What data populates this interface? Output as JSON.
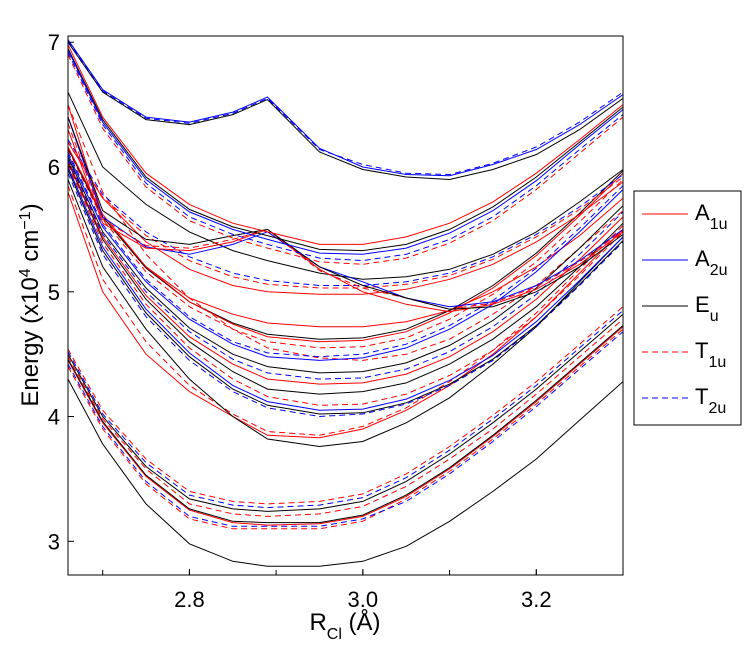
{
  "chart_data": {
    "type": "line",
    "title": "",
    "xlabel": {
      "main": "R",
      "sub": "Cl",
      "unit": " (Å)"
    },
    "ylabel": {
      "main": "Energy (x10",
      "sup": "4",
      "mid": " cm",
      "sup2": "−1",
      "end": ")"
    },
    "xlim": [
      2.66,
      3.3
    ],
    "ylim": [
      2.73,
      7.05
    ],
    "x_ticks": [
      2.8,
      3.0,
      3.2
    ],
    "x_tick_labels": [
      "2.8",
      "3.0",
      "3.2"
    ],
    "y_ticks": [
      3,
      4,
      5,
      6,
      7
    ],
    "y_tick_labels": [
      "3",
      "4",
      "5",
      "6",
      "7"
    ],
    "grid": false,
    "legend_position": "right",
    "legend": [
      {
        "symmetry": "A1u",
        "base": "A",
        "sub": "1u",
        "color": "#ff0000",
        "dash": "solid"
      },
      {
        "symmetry": "A2u",
        "base": "A",
        "sub": "2u",
        "color": "#0000ff",
        "dash": "solid"
      },
      {
        "symmetry": "Eu",
        "base": "E",
        "sub": "u",
        "color": "#000000",
        "dash": "solid"
      },
      {
        "symmetry": "T1u",
        "base": "T",
        "sub": "1u",
        "color": "#ff0000",
        "dash": "dashed"
      },
      {
        "symmetry": "T2u",
        "base": "T",
        "sub": "2u",
        "color": "#0000ff",
        "dash": "dashed"
      }
    ],
    "x": [
      2.66,
      2.7,
      2.75,
      2.8,
      2.85,
      2.89,
      2.95,
      3.0,
      3.05,
      3.1,
      3.15,
      3.2,
      3.25,
      3.3
    ],
    "series": [
      {
        "name": "Eu",
        "values": [
          4.3,
          3.78,
          3.3,
          2.98,
          2.84,
          2.8,
          2.8,
          2.84,
          2.96,
          3.16,
          3.4,
          3.66,
          3.97,
          4.28
        ]
      },
      {
        "name": "T1u",
        "values": [
          4.4,
          3.9,
          3.46,
          3.18,
          3.1,
          3.1,
          3.1,
          3.16,
          3.34,
          3.56,
          3.82,
          4.1,
          4.4,
          4.7
        ]
      },
      {
        "name": "T2u",
        "values": [
          4.42,
          3.92,
          3.48,
          3.2,
          3.12,
          3.12,
          3.12,
          3.18,
          3.32,
          3.54,
          3.8,
          4.08,
          4.38,
          4.68
        ]
      },
      {
        "name": "A1u",
        "values": [
          4.45,
          3.95,
          3.52,
          3.25,
          3.15,
          3.13,
          3.14,
          3.2,
          3.36,
          3.58,
          3.84,
          4.12,
          4.42,
          4.72
        ]
      },
      {
        "name": "Eu",
        "values": [
          4.46,
          3.96,
          3.53,
          3.26,
          3.16,
          3.15,
          3.15,
          3.21,
          3.37,
          3.59,
          3.85,
          4.13,
          4.43,
          4.73
        ]
      },
      {
        "name": "T1u",
        "values": [
          4.48,
          3.98,
          3.58,
          3.3,
          3.22,
          3.2,
          3.22,
          3.28,
          3.44,
          3.66,
          3.9,
          4.18,
          4.48,
          4.78
        ]
      },
      {
        "name": "Eu",
        "values": [
          4.5,
          4.0,
          3.6,
          3.34,
          3.26,
          3.24,
          3.26,
          3.32,
          3.48,
          3.7,
          3.95,
          4.22,
          4.52,
          4.82
        ]
      },
      {
        "name": "T2u",
        "values": [
          4.52,
          4.02,
          3.63,
          3.37,
          3.29,
          3.27,
          3.29,
          3.35,
          3.51,
          3.73,
          3.98,
          4.25,
          4.55,
          4.85
        ]
      },
      {
        "name": "T1u",
        "values": [
          4.54,
          4.05,
          3.66,
          3.4,
          3.32,
          3.3,
          3.32,
          3.38,
          3.54,
          3.76,
          4.01,
          4.28,
          4.58,
          4.88
        ]
      },
      {
        "name": "A1u",
        "values": [
          5.8,
          5.0,
          4.5,
          4.2,
          4.0,
          3.85,
          3.83,
          3.9,
          4.05,
          4.25,
          4.5,
          4.8,
          5.15,
          5.5
        ]
      },
      {
        "name": "T1u",
        "values": [
          5.85,
          5.1,
          4.6,
          4.25,
          4.02,
          3.88,
          3.85,
          3.92,
          4.07,
          4.28,
          4.53,
          4.83,
          5.18,
          5.53
        ]
      },
      {
        "name": "Eu",
        "values": [
          5.9,
          5.2,
          4.7,
          4.3,
          4.0,
          3.82,
          3.76,
          3.8,
          3.95,
          4.15,
          4.42,
          4.72,
          5.08,
          5.44
        ]
      },
      {
        "name": "T1u",
        "values": [
          6.5,
          5.8,
          5.3,
          4.95,
          4.7,
          4.55,
          4.47,
          4.45,
          4.5,
          4.62,
          4.82,
          5.05,
          5.35,
          5.65
        ]
      },
      {
        "name": "A1u",
        "values": [
          6.5,
          5.6,
          5.2,
          4.95,
          4.82,
          4.75,
          4.72,
          4.72,
          4.76,
          4.85,
          5.0,
          5.2,
          5.45,
          5.75
        ]
      },
      {
        "name": "T2u",
        "values": [
          5.95,
          5.3,
          4.8,
          4.45,
          4.2,
          4.07,
          4.0,
          4.02,
          4.1,
          4.25,
          4.45,
          4.72,
          5.05,
          5.4
        ]
      },
      {
        "name": "Eu",
        "values": [
          5.98,
          5.33,
          4.83,
          4.48,
          4.22,
          4.09,
          4.02,
          4.03,
          4.11,
          4.26,
          4.46,
          4.73,
          5.06,
          5.41
        ]
      },
      {
        "name": "A2u",
        "values": [
          6.0,
          5.36,
          4.86,
          4.51,
          4.25,
          4.12,
          4.05,
          4.06,
          4.14,
          4.29,
          4.49,
          4.76,
          5.09,
          5.44
        ]
      },
      {
        "name": "T1u",
        "values": [
          6.02,
          5.39,
          4.9,
          4.55,
          4.3,
          4.16,
          4.09,
          4.1,
          4.18,
          4.33,
          4.53,
          4.8,
          5.13,
          5.48
        ]
      },
      {
        "name": "Eu",
        "values": [
          6.04,
          5.42,
          4.94,
          4.6,
          4.36,
          4.22,
          4.18,
          4.2,
          4.27,
          4.42,
          4.62,
          4.88,
          5.2,
          5.55
        ]
      },
      {
        "name": "A1u",
        "values": [
          6.05,
          5.44,
          4.97,
          4.64,
          4.42,
          4.3,
          4.26,
          4.27,
          4.34,
          4.48,
          4.68,
          4.94,
          5.26,
          5.6
        ]
      },
      {
        "name": "T2u",
        "values": [
          6.06,
          5.46,
          5.0,
          4.68,
          4.46,
          4.35,
          4.3,
          4.31,
          4.38,
          4.52,
          4.72,
          4.98,
          5.3,
          5.64
        ]
      },
      {
        "name": "Eu",
        "values": [
          6.08,
          5.48,
          5.03,
          4.71,
          4.5,
          4.4,
          4.35,
          4.36,
          4.43,
          4.57,
          4.77,
          5.03,
          5.35,
          5.69
        ]
      },
      {
        "name": "A2u",
        "values": [
          6.1,
          5.52,
          5.08,
          4.78,
          4.58,
          4.48,
          4.45,
          4.47,
          4.55,
          4.7,
          4.9,
          5.16,
          5.48,
          5.82
        ]
      },
      {
        "name": "T2u",
        "values": [
          6.12,
          5.54,
          5.1,
          4.8,
          4.6,
          4.51,
          4.48,
          4.5,
          4.58,
          4.73,
          4.93,
          5.19,
          5.51,
          5.85
        ]
      },
      {
        "name": "T1u",
        "values": [
          6.14,
          5.58,
          5.16,
          4.88,
          4.7,
          4.6,
          4.55,
          4.56,
          4.63,
          4.78,
          4.98,
          5.24,
          5.56,
          5.9
        ]
      },
      {
        "name": "Eu",
        "values": [
          6.15,
          5.6,
          5.19,
          4.92,
          4.75,
          4.66,
          4.62,
          4.63,
          4.7,
          4.85,
          5.05,
          5.31,
          5.63,
          5.97
        ]
      },
      {
        "name": "A1u",
        "values": [
          6.16,
          5.62,
          5.2,
          4.92,
          4.74,
          4.64,
          4.6,
          4.61,
          4.68,
          4.83,
          5.03,
          5.29,
          5.61,
          5.95
        ]
      },
      {
        "name": "A1u",
        "values": [
          6.2,
          5.75,
          5.4,
          5.18,
          5.05,
          5.0,
          4.98,
          4.98,
          5.02,
          5.1,
          5.22,
          5.4,
          5.62,
          5.88
        ]
      },
      {
        "name": "T1u",
        "values": [
          6.2,
          5.76,
          5.45,
          5.25,
          5.12,
          5.06,
          5.03,
          5.03,
          5.06,
          5.13,
          5.26,
          5.44,
          5.66,
          5.92
        ]
      },
      {
        "name": "T2u",
        "values": [
          6.22,
          5.78,
          5.48,
          5.28,
          5.15,
          5.09,
          5.05,
          5.05,
          5.08,
          5.15,
          5.28,
          5.46,
          5.68,
          5.94
        ]
      },
      {
        "name": "Eu",
        "values": [
          6.6,
          6.0,
          5.7,
          5.48,
          5.33,
          5.25,
          5.15,
          5.1,
          5.12,
          5.18,
          5.3,
          5.48,
          5.72,
          5.98
        ]
      },
      {
        "name": "A2u",
        "values": [
          6.4,
          5.6,
          5.36,
          5.3,
          5.38,
          5.48,
          5.2,
          5.08,
          4.95,
          4.88,
          4.92,
          5.05,
          5.25,
          5.5
        ]
      },
      {
        "name": "A1u",
        "values": [
          6.3,
          5.55,
          5.35,
          5.33,
          5.4,
          5.5,
          5.18,
          5.0,
          4.9,
          4.84,
          4.9,
          5.02,
          5.22,
          5.48
        ]
      },
      {
        "name": "T1u",
        "values": [
          6.35,
          5.58,
          5.37,
          5.35,
          5.42,
          5.5,
          5.17,
          5.03,
          4.95,
          4.86,
          4.91,
          5.04,
          5.24,
          5.49
        ]
      },
      {
        "name": "Eu",
        "values": [
          6.4,
          5.65,
          5.42,
          5.38,
          5.45,
          5.5,
          5.2,
          5.05,
          4.95,
          4.86,
          4.88,
          5.0,
          5.2,
          5.46
        ]
      },
      {
        "name": "A1u",
        "values": [
          6.98,
          6.4,
          5.95,
          5.7,
          5.55,
          5.48,
          5.38,
          5.38,
          5.44,
          5.55,
          5.72,
          5.95,
          6.22,
          6.5
        ]
      },
      {
        "name": "Eu",
        "values": [
          6.95,
          6.38,
          5.92,
          5.66,
          5.52,
          5.45,
          5.34,
          5.33,
          5.38,
          5.5,
          5.68,
          5.92,
          6.2,
          6.48
        ]
      },
      {
        "name": "A2u",
        "values": [
          6.94,
          6.36,
          5.9,
          5.64,
          5.5,
          5.42,
          5.31,
          5.3,
          5.35,
          5.47,
          5.65,
          5.89,
          6.18,
          6.46
        ]
      },
      {
        "name": "T2u",
        "values": [
          6.92,
          6.34,
          5.87,
          5.6,
          5.46,
          5.38,
          5.27,
          5.25,
          5.3,
          5.42,
          5.6,
          5.85,
          6.14,
          6.42
        ]
      },
      {
        "name": "T1u",
        "values": [
          6.9,
          6.31,
          5.84,
          5.57,
          5.43,
          5.35,
          5.24,
          5.22,
          5.27,
          5.39,
          5.57,
          5.82,
          6.11,
          6.4
        ]
      },
      {
        "name": "Eu",
        "values": [
          7.0,
          6.6,
          6.38,
          6.34,
          6.42,
          6.54,
          6.12,
          5.98,
          5.92,
          5.9,
          5.98,
          6.1,
          6.3,
          6.55
        ]
      },
      {
        "name": "A2u",
        "values": [
          7.02,
          6.62,
          6.4,
          6.36,
          6.44,
          6.56,
          6.15,
          6.0,
          5.94,
          5.93,
          6.02,
          6.14,
          6.34,
          6.58
        ]
      },
      {
        "name": "T2u",
        "values": [
          7.01,
          6.61,
          6.39,
          6.35,
          6.43,
          6.55,
          6.14,
          6.02,
          5.95,
          5.94,
          6.03,
          6.16,
          6.36,
          6.6
        ]
      }
    ]
  }
}
